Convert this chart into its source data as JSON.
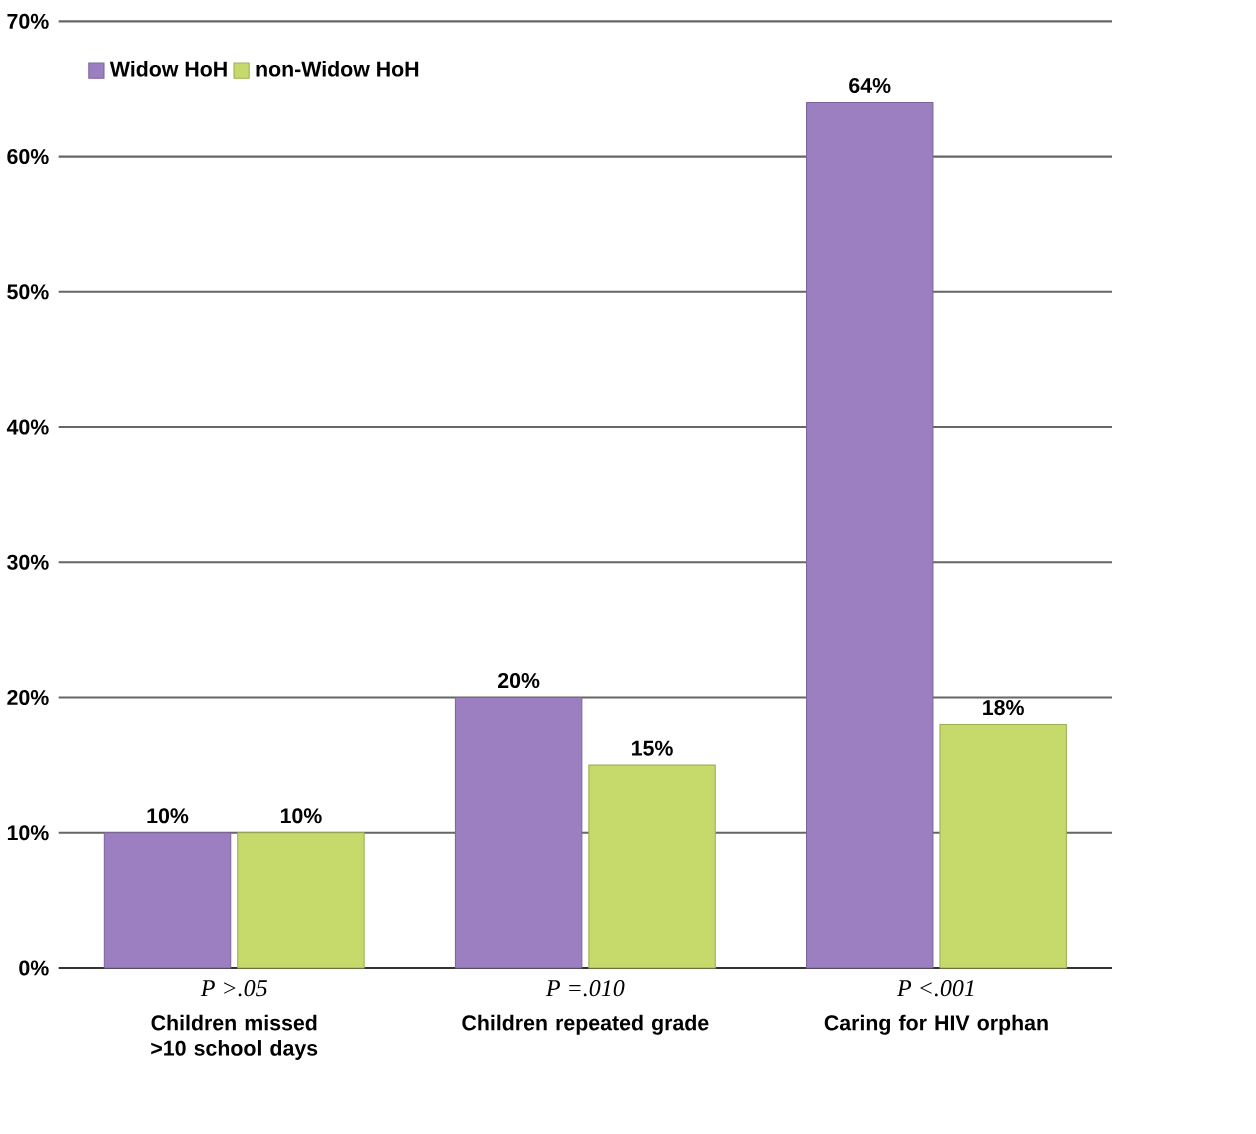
{
  "chart_data": {
    "type": "bar",
    "categories": [
      "Children missed >10 school days",
      "Children repeated grade",
      "Caring for HIV orphan"
    ],
    "series": [
      {
        "name": "Widow HoH",
        "color": "#9b7fc1",
        "values": [
          10,
          20,
          64
        ],
        "value_labels": [
          "10%",
          "20%",
          "64%"
        ]
      },
      {
        "name": "non-Widow HoH",
        "color": "#c6da6c",
        "values": [
          10,
          15,
          18
        ],
        "value_labels": [
          "10%",
          "15%",
          "18%"
        ]
      }
    ],
    "ylim": [
      0,
      70
    ],
    "yticks": [
      {
        "value": 0,
        "label": "0%"
      },
      {
        "value": 10,
        "label": "10%"
      },
      {
        "value": 20,
        "label": "20%"
      },
      {
        "value": 30,
        "label": "30%"
      },
      {
        "value": 40,
        "label": "40%"
      },
      {
        "value": 50,
        "label": "50%"
      },
      {
        "value": 60,
        "label": "60%"
      },
      {
        "value": 70,
        "label": "70%"
      }
    ],
    "annotations": [
      "*P* *>.05*",
      "*P* *=.010*",
      "*P* *<.001*"
    ],
    "grid": "y",
    "legend": "top left"
  }
}
